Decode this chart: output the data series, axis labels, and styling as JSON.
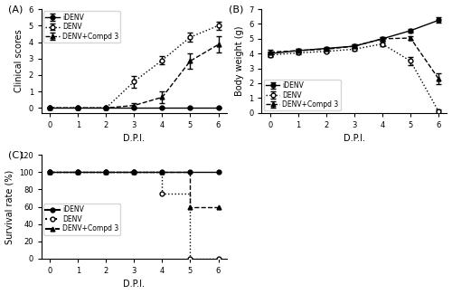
{
  "panel_A": {
    "title": "(A)",
    "xlabel": "D.P.I.",
    "ylabel": "Clinical scores",
    "xlim": [
      -0.3,
      6.3
    ],
    "ylim": [
      -0.3,
      6
    ],
    "xticks": [
      0,
      1,
      2,
      3,
      4,
      5,
      6
    ],
    "yticks": [
      0,
      1,
      2,
      3,
      4,
      5,
      6
    ],
    "iDENV_x": [
      0,
      1,
      2,
      3,
      4,
      5,
      6
    ],
    "iDENV_y": [
      0,
      0,
      0,
      0,
      0,
      0,
      0
    ],
    "iDENV_err": [
      0,
      0,
      0,
      0,
      0,
      0,
      0
    ],
    "DENV_x": [
      0,
      1,
      2,
      3,
      4,
      5,
      6
    ],
    "DENV_y": [
      0,
      0,
      0,
      1.6,
      2.9,
      4.3,
      5.0
    ],
    "DENV_err": [
      0,
      0,
      0,
      0.35,
      0.25,
      0.25,
      0.25
    ],
    "DENVc_x": [
      0,
      1,
      2,
      3,
      4,
      5,
      6
    ],
    "DENVc_y": [
      0,
      0,
      0,
      0.15,
      0.65,
      2.85,
      3.85
    ],
    "DENVc_err": [
      0,
      0,
      0,
      0.15,
      0.35,
      0.45,
      0.5
    ]
  },
  "panel_B": {
    "title": "(B)",
    "xlabel": "D.P.I.",
    "ylabel": "Body weight (g)",
    "xlim": [
      -0.3,
      6.3
    ],
    "ylim": [
      0,
      7
    ],
    "xticks": [
      0,
      1,
      2,
      3,
      4,
      5,
      6
    ],
    "yticks": [
      0,
      1,
      2,
      3,
      4,
      5,
      6,
      7
    ],
    "iDENV_x": [
      0,
      1,
      2,
      3,
      4,
      5,
      6
    ],
    "iDENV_y": [
      4.0,
      4.2,
      4.35,
      4.5,
      5.0,
      5.55,
      6.25
    ],
    "iDENV_err": [
      0.15,
      0.1,
      0.1,
      0.1,
      0.12,
      0.12,
      0.18
    ],
    "DENV_x": [
      0,
      1,
      2,
      3,
      4,
      5,
      6
    ],
    "DENV_y": [
      3.9,
      4.05,
      4.15,
      4.3,
      4.65,
      3.5,
      0.1
    ],
    "DENV_err": [
      0.15,
      0.1,
      0.1,
      0.1,
      0.12,
      0.25,
      0.1
    ],
    "DENVc_x": [
      0,
      1,
      2,
      3,
      4,
      5,
      6
    ],
    "DENVc_y": [
      4.1,
      4.2,
      4.3,
      4.5,
      5.0,
      5.05,
      2.3
    ],
    "DENVc_err": [
      0.15,
      0.1,
      0.1,
      0.1,
      0.12,
      0.15,
      0.35
    ]
  },
  "panel_C": {
    "title": "(C)",
    "xlabel": "D.P.I.",
    "ylabel": "Survival rate (%)",
    "xlim": [
      -0.3,
      6.3
    ],
    "ylim": [
      0,
      120
    ],
    "xticks": [
      0,
      1,
      2,
      3,
      4,
      5,
      6
    ],
    "yticks": [
      0,
      20,
      40,
      60,
      80,
      100,
      120
    ],
    "iDENV_x": [
      0,
      1,
      2,
      3,
      4,
      5,
      6
    ],
    "iDENV_y": [
      100,
      100,
      100,
      100,
      100,
      100,
      100
    ],
    "DENV_step_x": [
      0,
      1,
      2,
      3,
      4,
      4,
      5,
      5,
      6
    ],
    "DENV_step_y": [
      100,
      100,
      100,
      100,
      100,
      75,
      75,
      0,
      0
    ],
    "DENV_marker_x": [
      0,
      1,
      2,
      3,
      4,
      5,
      6
    ],
    "DENV_marker_y": [
      100,
      100,
      100,
      100,
      75,
      0,
      0
    ],
    "DENVc_step_x": [
      0,
      1,
      2,
      3,
      4,
      5,
      5,
      6
    ],
    "DENVc_step_y": [
      100,
      100,
      100,
      100,
      100,
      100,
      60,
      60
    ],
    "DENVc_marker_x": [
      0,
      1,
      2,
      3,
      4,
      5,
      6
    ],
    "DENVc_marker_y": [
      100,
      100,
      100,
      100,
      100,
      60,
      60
    ]
  }
}
